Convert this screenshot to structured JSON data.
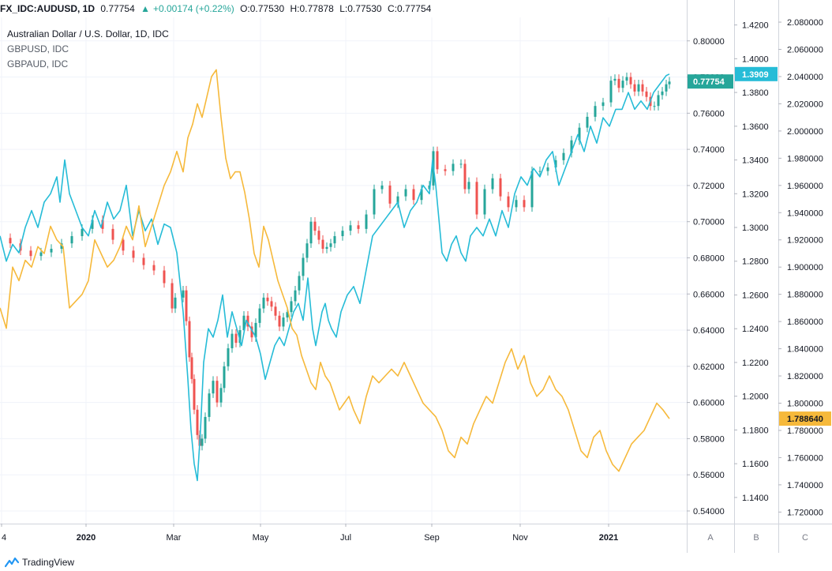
{
  "header": {
    "symbol": "FX_IDC:AUDUSD, 1D",
    "last": "0.77754",
    "change": "+0.00174 (+0.22%)",
    "open": "O:0.77530",
    "high": "H:0.77878",
    "low": "L:0.77530",
    "close": "C:0.77754"
  },
  "legend": {
    "main": "Australian Dollar / U.S. Dollar, 1D, IDC",
    "second": "GBPUSD, IDC",
    "third": "GBPAUD, IDC"
  },
  "footer": {
    "brand": "TradingView"
  },
  "scale_buttons": [
    "A",
    "B",
    "C"
  ],
  "chart_data": {
    "type": "line",
    "x_tick_labels": [
      "4",
      "2020",
      "Mar",
      "May",
      "Jul",
      "Sep",
      "Nov",
      "2021"
    ],
    "axes": [
      {
        "name": "A",
        "ticks": [
          "0.80000",
          "0.78000",
          "0.76000",
          "0.74000",
          "0.72000",
          "0.70000",
          "0.68000",
          "0.66000",
          "0.64000",
          "0.62000",
          "0.60000",
          "0.58000",
          "0.56000",
          "0.54000"
        ],
        "ylim": [
          0.533,
          0.813
        ],
        "last_label": "0.77754",
        "last_value": 0.77754,
        "color": "#26a69a"
      },
      {
        "name": "B",
        "ticks": [
          "1.4200",
          "1.4000",
          "1.3800",
          "1.3600",
          "1.3400",
          "1.3200",
          "1.3000",
          "1.2800",
          "1.2600",
          "1.2400",
          "1.2200",
          "1.2000",
          "1.1800",
          "1.1600",
          "1.1400"
        ],
        "ylim": [
          1.1245,
          1.4245
        ],
        "last_label": "1.3909",
        "last_value": 1.3909,
        "color": "#26bcd7"
      },
      {
        "name": "C",
        "ticks": [
          "2.080000",
          "2.060000",
          "2.040000",
          "2.020000",
          "2.000000",
          "1.980000",
          "1.960000",
          "1.940000",
          "1.920000",
          "1.900000",
          "1.880000",
          "1.860000",
          "1.840000",
          "1.820000",
          "1.800000",
          "1.780000",
          "1.760000",
          "1.740000",
          "1.720000"
        ],
        "ylim": [
          1.7115,
          2.0835
        ],
        "last_label": "1.788640",
        "last_value": 1.78864,
        "color": "#f6b93b"
      }
    ],
    "series": [
      {
        "name": "Australian Dollar / U.S. Dollar",
        "style": "candles",
        "axis": "A",
        "color_up": "#26a69a",
        "color_down": "#ef5350",
        "x": [
          0,
          13,
          26,
          39,
          52,
          65,
          78,
          91,
          104,
          117,
          130,
          143,
          156,
          169,
          182,
          195,
          208,
          218,
          222,
          232,
          236,
          240,
          243,
          246,
          250,
          253,
          256,
          260,
          265,
          270,
          275,
          280,
          284,
          289,
          294,
          299,
          304,
          309,
          314,
          319,
          324,
          329,
          334,
          339,
          344,
          349,
          354,
          359,
          364,
          369,
          374,
          379,
          384,
          389,
          394,
          399,
          404,
          409,
          414,
          419,
          424,
          434,
          444,
          454,
          464,
          474,
          484,
          494,
          504,
          514,
          524,
          534,
          544,
          549,
          554,
          564,
          574,
          584,
          589,
          594,
          604,
          614,
          624,
          634,
          644,
          654,
          664,
          674,
          684,
          694,
          704,
          714,
          724,
          734,
          744,
          754,
          764,
          774,
          779,
          784,
          789,
          794,
          799,
          804,
          809,
          814,
          819,
          824,
          829,
          834,
          839,
          844,
          848
        ],
        "values": [
          0.691,
          0.688,
          0.684,
          0.681,
          0.683,
          0.685,
          0.688,
          0.692,
          0.696,
          0.701,
          0.696,
          0.69,
          0.684,
          0.68,
          0.676,
          0.673,
          0.666,
          0.652,
          0.658,
          0.662,
          0.645,
          0.625,
          0.613,
          0.596,
          0.582,
          0.576,
          0.58,
          0.592,
          0.605,
          0.612,
          0.6,
          0.608,
          0.62,
          0.63,
          0.638,
          0.633,
          0.64,
          0.648,
          0.642,
          0.636,
          0.644,
          0.652,
          0.658,
          0.656,
          0.653,
          0.648,
          0.642,
          0.647,
          0.65,
          0.656,
          0.662,
          0.67,
          0.68,
          0.688,
          0.7,
          0.695,
          0.69,
          0.685,
          0.686,
          0.688,
          0.692,
          0.695,
          0.698,
          0.696,
          0.704,
          0.718,
          0.72,
          0.71,
          0.714,
          0.718,
          0.712,
          0.718,
          0.72,
          0.739,
          0.729,
          0.728,
          0.732,
          0.732,
          0.718,
          0.722,
          0.704,
          0.718,
          0.724,
          0.714,
          0.708,
          0.712,
          0.708,
          0.728,
          0.728,
          0.73,
          0.734,
          0.738,
          0.745,
          0.752,
          0.758,
          0.764,
          0.766,
          0.778,
          0.779,
          0.774,
          0.778,
          0.78,
          0.776,
          0.772,
          0.776,
          0.772,
          0.769,
          0.764,
          0.764,
          0.77,
          0.772,
          0.776,
          0.7775
        ]
      },
      {
        "name": "GBPUSD",
        "style": "line",
        "axis": "B",
        "color": "#26bcd7",
        "x": [
          0,
          8,
          16,
          24,
          32,
          40,
          48,
          56,
          64,
          72,
          76,
          82,
          88,
          96,
          104,
          112,
          120,
          128,
          136,
          144,
          152,
          160,
          168,
          176,
          184,
          192,
          200,
          208,
          216,
          224,
          232,
          238,
          242,
          246,
          250,
          254,
          258,
          264,
          270,
          276,
          282,
          288,
          294,
          300,
          306,
          312,
          318,
          324,
          330,
          336,
          342,
          348,
          354,
          360,
          366,
          372,
          378,
          384,
          390,
          396,
          400,
          404,
          408,
          412,
          416,
          420,
          426,
          432,
          440,
          448,
          456,
          464,
          472,
          480,
          488,
          496,
          504,
          512,
          520,
          528,
          536,
          544,
          548,
          552,
          556,
          560,
          566,
          572,
          578,
          584,
          590,
          596,
          604,
          612,
          620,
          628,
          636,
          644,
          652,
          660,
          668,
          676,
          684,
          692,
          700,
          708,
          716,
          724,
          732,
          740,
          748,
          756,
          764,
          772,
          780,
          788,
          796,
          804,
          812,
          820,
          828,
          836,
          844,
          848
        ],
        "values": [
          1.295,
          1.28,
          1.29,
          1.285,
          1.3,
          1.31,
          1.3,
          1.315,
          1.32,
          1.33,
          1.315,
          1.34,
          1.32,
          1.31,
          1.3,
          1.295,
          1.31,
          1.3,
          1.315,
          1.305,
          1.31,
          1.325,
          1.295,
          1.31,
          1.298,
          1.305,
          1.29,
          1.302,
          1.3,
          1.285,
          1.25,
          1.21,
          1.18,
          1.16,
          1.15,
          1.18,
          1.22,
          1.24,
          1.235,
          1.245,
          1.26,
          1.235,
          1.25,
          1.24,
          1.23,
          1.245,
          1.24,
          1.235,
          1.225,
          1.21,
          1.22,
          1.23,
          1.235,
          1.23,
          1.24,
          1.25,
          1.255,
          1.245,
          1.27,
          1.24,
          1.23,
          1.24,
          1.25,
          1.255,
          1.245,
          1.24,
          1.235,
          1.25,
          1.26,
          1.265,
          1.255,
          1.275,
          1.295,
          1.3,
          1.305,
          1.31,
          1.315,
          1.3,
          1.31,
          1.315,
          1.325,
          1.32,
          1.34,
          1.325,
          1.305,
          1.285,
          1.28,
          1.29,
          1.295,
          1.285,
          1.28,
          1.295,
          1.3,
          1.295,
          1.305,
          1.295,
          1.31,
          1.3,
          1.32,
          1.33,
          1.325,
          1.335,
          1.33,
          1.34,
          1.345,
          1.325,
          1.335,
          1.345,
          1.355,
          1.345,
          1.36,
          1.35,
          1.365,
          1.36,
          1.37,
          1.37,
          1.38,
          1.37,
          1.375,
          1.37,
          1.38,
          1.385,
          1.39,
          1.3909
        ]
      },
      {
        "name": "GBPAUD",
        "style": "line",
        "axis": "C",
        "color": "#f6b93b",
        "x": [
          0,
          8,
          16,
          24,
          32,
          40,
          48,
          56,
          64,
          72,
          80,
          88,
          96,
          104,
          112,
          120,
          128,
          136,
          144,
          152,
          160,
          168,
          176,
          184,
          192,
          200,
          208,
          216,
          224,
          232,
          238,
          244,
          250,
          256,
          262,
          268,
          274,
          280,
          286,
          292,
          298,
          304,
          310,
          316,
          322,
          328,
          334,
          340,
          346,
          352,
          358,
          364,
          370,
          376,
          382,
          388,
          394,
          400,
          406,
          412,
          418,
          424,
          430,
          436,
          442,
          448,
          456,
          464,
          472,
          480,
          488,
          496,
          504,
          512,
          520,
          528,
          536,
          544,
          552,
          560,
          568,
          576,
          584,
          592,
          600,
          608,
          616,
          624,
          632,
          640,
          648,
          656,
          664,
          672,
          680,
          688,
          696,
          704,
          712,
          720,
          728,
          736,
          744,
          752,
          760,
          768,
          776,
          784,
          792,
          800,
          808,
          816,
          824,
          832,
          840,
          848
        ],
        "values": [
          1.87,
          1.855,
          1.9,
          1.89,
          1.905,
          1.9,
          1.915,
          1.91,
          1.93,
          1.92,
          1.915,
          1.87,
          1.875,
          1.88,
          1.89,
          1.92,
          1.91,
          1.9,
          1.905,
          1.915,
          1.93,
          1.92,
          1.945,
          1.915,
          1.93,
          1.945,
          1.96,
          1.97,
          1.985,
          1.97,
          1.995,
          2.005,
          2.02,
          2.01,
          2.025,
          2.04,
          2.045,
          2.01,
          1.98,
          1.965,
          1.97,
          1.97,
          1.955,
          1.935,
          1.91,
          1.9,
          1.93,
          1.92,
          1.905,
          1.89,
          1.88,
          1.87,
          1.855,
          1.85,
          1.835,
          1.825,
          1.815,
          1.81,
          1.83,
          1.82,
          1.815,
          1.805,
          1.795,
          1.8,
          1.805,
          1.795,
          1.785,
          1.805,
          1.82,
          1.815,
          1.82,
          1.825,
          1.82,
          1.83,
          1.82,
          1.81,
          1.8,
          1.795,
          1.79,
          1.78,
          1.765,
          1.76,
          1.775,
          1.77,
          1.785,
          1.795,
          1.805,
          1.8,
          1.815,
          1.83,
          1.84,
          1.825,
          1.835,
          1.815,
          1.805,
          1.81,
          1.82,
          1.81,
          1.805,
          1.795,
          1.78,
          1.765,
          1.76,
          1.775,
          1.78,
          1.765,
          1.755,
          1.75,
          1.76,
          1.77,
          1.775,
          1.78,
          1.79,
          1.8,
          1.795,
          1.7886
        ]
      }
    ]
  }
}
